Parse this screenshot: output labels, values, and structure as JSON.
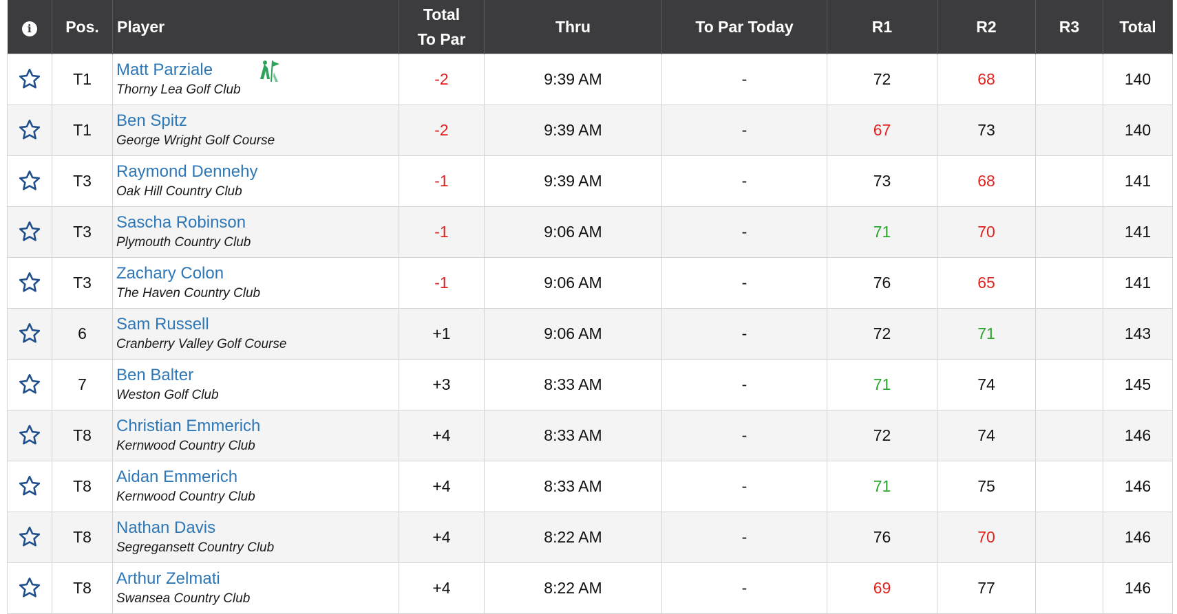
{
  "header": {
    "info": "i",
    "pos": "Pos.",
    "player": "Player",
    "total_to_par_1": "Total",
    "total_to_par_2": "To Par",
    "thru": "Thru",
    "to_par_today": "To Par Today",
    "r1": "R1",
    "r2": "R2",
    "r3": "R3",
    "total": "Total"
  },
  "colors": {
    "under_par": "#e0221f",
    "par": "#2ca52c",
    "link": "#2e77b7",
    "header_bg": "#3c3c3e"
  },
  "rows": [
    {
      "pos": "T1",
      "name": "Matt Parziale",
      "club": "Thorny Lea Golf Club",
      "to_par": "-2",
      "to_par_status": "red",
      "thru": "9:39 AM",
      "today": "-",
      "r1": "72",
      "r1_status": "",
      "r2": "68",
      "r2_status": "red",
      "r3": "",
      "total": "140",
      "badge": "flag-badge-icon"
    },
    {
      "pos": "T1",
      "name": "Ben Spitz",
      "club": "George Wright Golf Course",
      "to_par": "-2",
      "to_par_status": "red",
      "thru": "9:39 AM",
      "today": "-",
      "r1": "67",
      "r1_status": "red",
      "r2": "73",
      "r2_status": "",
      "r3": "",
      "total": "140"
    },
    {
      "pos": "T3",
      "name": "Raymond Dennehy",
      "club": "Oak Hill Country Club",
      "to_par": "-1",
      "to_par_status": "red",
      "thru": "9:39 AM",
      "today": "-",
      "r1": "73",
      "r1_status": "",
      "r2": "68",
      "r2_status": "red",
      "r3": "",
      "total": "141"
    },
    {
      "pos": "T3",
      "name": "Sascha Robinson",
      "club": "Plymouth Country Club",
      "to_par": "-1",
      "to_par_status": "red",
      "thru": "9:06 AM",
      "today": "-",
      "r1": "71",
      "r1_status": "green",
      "r2": "70",
      "r2_status": "red",
      "r3": "",
      "total": "141"
    },
    {
      "pos": "T3",
      "name": "Zachary Colon",
      "club": "The Haven Country Club",
      "to_par": "-1",
      "to_par_status": "red",
      "thru": "9:06 AM",
      "today": "-",
      "r1": "76",
      "r1_status": "",
      "r2": "65",
      "r2_status": "red",
      "r3": "",
      "total": "141"
    },
    {
      "pos": "6",
      "name": "Sam Russell",
      "club": "Cranberry Valley Golf Course",
      "to_par": "+1",
      "to_par_status": "",
      "thru": "9:06 AM",
      "today": "-",
      "r1": "72",
      "r1_status": "",
      "r2": "71",
      "r2_status": "green",
      "r3": "",
      "total": "143"
    },
    {
      "pos": "7",
      "name": "Ben Balter",
      "club": "Weston Golf Club",
      "to_par": "+3",
      "to_par_status": "",
      "thru": "8:33 AM",
      "today": "-",
      "r1": "71",
      "r1_status": "green",
      "r2": "74",
      "r2_status": "",
      "r3": "",
      "total": "145"
    },
    {
      "pos": "T8",
      "name": "Christian Emmerich",
      "club": "Kernwood Country Club",
      "to_par": "+4",
      "to_par_status": "",
      "thru": "8:33 AM",
      "today": "-",
      "r1": "72",
      "r1_status": "",
      "r2": "74",
      "r2_status": "",
      "r3": "",
      "total": "146"
    },
    {
      "pos": "T8",
      "name": "Aidan Emmerich",
      "club": "Kernwood Country Club",
      "to_par": "+4",
      "to_par_status": "",
      "thru": "8:33 AM",
      "today": "-",
      "r1": "71",
      "r1_status": "green",
      "r2": "75",
      "r2_status": "",
      "r3": "",
      "total": "146"
    },
    {
      "pos": "T8",
      "name": "Nathan Davis",
      "club": "Segregansett Country Club",
      "to_par": "+4",
      "to_par_status": "",
      "thru": "8:22 AM",
      "today": "-",
      "r1": "76",
      "r1_status": "",
      "r2": "70",
      "r2_status": "red",
      "r3": "",
      "total": "146"
    },
    {
      "pos": "T8",
      "name": "Arthur Zelmati",
      "club": "Swansea Country Club",
      "to_par": "+4",
      "to_par_status": "",
      "thru": "8:22 AM",
      "today": "-",
      "r1": "69",
      "r1_status": "red",
      "r2": "77",
      "r2_status": "",
      "r3": "",
      "total": "146"
    }
  ]
}
